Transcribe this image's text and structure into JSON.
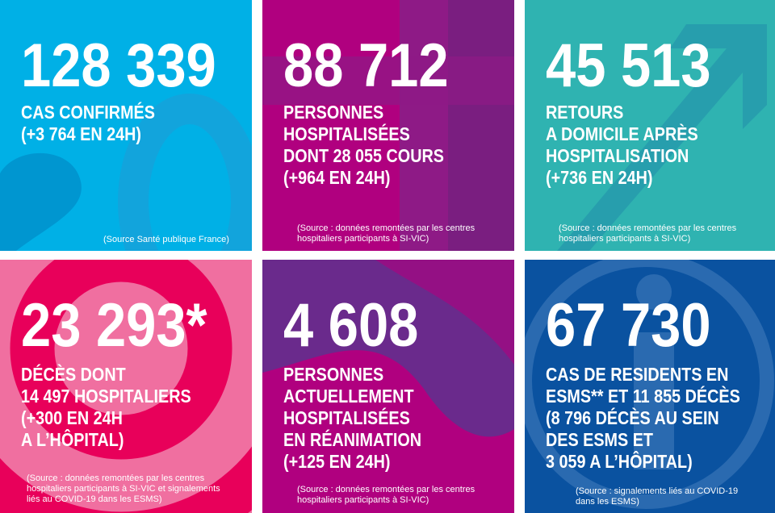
{
  "tiles": [
    {
      "number": "128 339",
      "lines": [
        "CAS CONFIRMÉS",
        "(+3 764 EN 24H)"
      ],
      "source": [
        "(Source Santé publique France)"
      ],
      "color": "#00b0e6"
    },
    {
      "number": "88 712",
      "lines": [
        "PERSONNES",
        "HOSPITALISÉES",
        "DONT 28 055 COURS",
        "(+964 EN 24H)"
      ],
      "source": [
        "(Source : données remontées par les centres",
        "hospitaliers participants à SI-VIC)"
      ],
      "color": "#a3007f"
    },
    {
      "number": "45 513",
      "lines": [
        "RETOURS",
        "A DOMICILE APRÈS",
        "HOSPITALISATION",
        "(+736 EN 24H)"
      ],
      "source": [
        "(Source : données remontées par les centres",
        "hospitaliers participants à SI-VIC)"
      ],
      "color": "#2fb3b1"
    },
    {
      "number": "23 293*",
      "lines": [
        "DÉCÈS DONT",
        "14 497 HOSPITALIERS",
        "(+300 EN 24H",
        "A L’HÔPITAL)"
      ],
      "source": [
        "(Source : données remontées par les centres",
        "hospitaliers participants à SI-VIC et signalements",
        "liés au COVID-19 dans les ESMS)"
      ],
      "color": "#e8005a"
    },
    {
      "number": "4 608",
      "lines": [
        "PERSONNES",
        "ACTUELLEMENT",
        "HOSPITALISÉES",
        "EN RÉANIMATION",
        "(+125 EN 24H)"
      ],
      "source": [
        "(Source : données remontées par les centres",
        "hospitaliers participants à SI-VIC)"
      ],
      "color": "#b0007f"
    },
    {
      "number": "67 730",
      "lines": [
        "CAS DE RESIDENTS EN",
        "ESMS** ET 11 855 DÉCÈS",
        "(8 796 DÉCÈS AU SEIN",
        "DES ESMS ET",
        "3 059 A L’HÔPITAL)"
      ],
      "source": [
        "(Source : signalements liés au COVID-19",
        "dans les ESMS)"
      ],
      "color": "#0a52a0"
    }
  ]
}
